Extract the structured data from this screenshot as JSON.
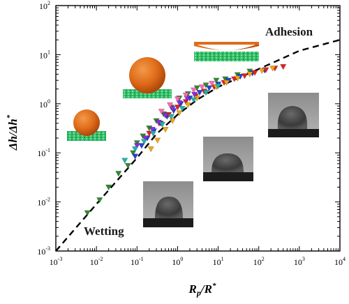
{
  "chart_data": {
    "type": "scatter",
    "title": "",
    "xlabel": {
      "main": "R",
      "sub": "p",
      "div": "/R",
      "sup": "*"
    },
    "ylabel": {
      "main": "Δh/Δh",
      "sup": "*"
    },
    "xscale": "log",
    "yscale": "log",
    "xlim": [
      0.001,
      10000
    ],
    "ylim": [
      0.001,
      100
    ],
    "x_ticks": [
      {
        "base": "10",
        "exp": "-3",
        "value": 0.001
      },
      {
        "base": "10",
        "exp": "-2",
        "value": 0.01
      },
      {
        "base": "10",
        "exp": "-1",
        "value": 0.1
      },
      {
        "base": "10",
        "exp": "0",
        "value": 1
      },
      {
        "base": "10",
        "exp": "1",
        "value": 10
      },
      {
        "base": "10",
        "exp": "2",
        "value": 100
      },
      {
        "base": "10",
        "exp": "3",
        "value": 1000
      },
      {
        "base": "10",
        "exp": "4",
        "value": 10000
      }
    ],
    "y_ticks": [
      {
        "base": "10",
        "exp": "-3",
        "value": 0.001
      },
      {
        "base": "10",
        "exp": "-2",
        "value": 0.01
      },
      {
        "base": "10",
        "exp": "-1",
        "value": 0.1
      },
      {
        "base": "10",
        "exp": "0",
        "value": 1
      },
      {
        "base": "10",
        "exp": "1",
        "value": 10
      },
      {
        "base": "10",
        "exp": "2",
        "value": 100
      }
    ],
    "grid": false,
    "legend": "none",
    "annotations": [
      {
        "text": "Adhesion",
        "position": "top-right"
      },
      {
        "text": "Wetting",
        "position": "bottom-left"
      }
    ],
    "fit_curve": {
      "style": "dashed",
      "color": "#000000",
      "x": [
        0.001,
        0.01,
        0.1,
        0.3,
        1,
        3,
        10,
        100,
        1000,
        10000
      ],
      "y": [
        0.001,
        0.009,
        0.079,
        0.24,
        0.6,
        1.2,
        2.2,
        5.1,
        12.0,
        20.0
      ]
    },
    "series": [
      {
        "color": "#2e8b2e",
        "marker": "triangle-down",
        "points": [
          [
            0.006,
            0.006
          ],
          [
            0.012,
            0.011
          ],
          [
            0.02,
            0.02
          ],
          [
            0.035,
            0.038
          ],
          [
            0.06,
            0.055
          ],
          [
            0.08,
            0.1
          ],
          [
            0.1,
            0.16
          ],
          [
            0.14,
            0.22
          ],
          [
            0.2,
            0.32
          ],
          [
            0.3,
            0.45
          ],
          [
            0.45,
            0.62
          ],
          [
            0.7,
            0.85
          ],
          [
            1.1,
            1.3
          ],
          [
            1.8,
            1.6
          ],
          [
            3,
            2.1
          ],
          [
            5,
            2.4
          ],
          [
            9,
            3.0
          ],
          [
            15,
            3.2
          ],
          [
            30,
            3.9
          ],
          [
            60,
            4.6
          ]
        ]
      },
      {
        "color": "#2a3fd6",
        "marker": "triangle-down",
        "points": [
          [
            0.09,
            0.085
          ],
          [
            0.13,
            0.14
          ],
          [
            0.18,
            0.2
          ],
          [
            0.26,
            0.28
          ],
          [
            0.38,
            0.4
          ],
          [
            0.55,
            0.55
          ],
          [
            0.8,
            0.72
          ],
          [
            1.2,
            1.0
          ],
          [
            2,
            1.3
          ],
          [
            3.5,
            1.7
          ],
          [
            6,
            2.1
          ],
          [
            10,
            2.5
          ],
          [
            18,
            3.0
          ],
          [
            35,
            3.6
          ],
          [
            70,
            4.2
          ],
          [
            140,
            4.8
          ]
        ]
      },
      {
        "color": "#e02020",
        "marker": "triangle-down",
        "points": [
          [
            0.2,
            0.25
          ],
          [
            0.35,
            0.4
          ],
          [
            0.6,
            0.6
          ],
          [
            1.0,
            0.85
          ],
          [
            1.6,
            1.1
          ],
          [
            2.8,
            1.45
          ],
          [
            4.5,
            1.8
          ],
          [
            8,
            2.2
          ],
          [
            14,
            2.7
          ],
          [
            25,
            3.2
          ],
          [
            45,
            3.7
          ],
          [
            80,
            4.3
          ],
          [
            150,
            4.9
          ],
          [
            250,
            5.3
          ],
          [
            400,
            5.7
          ]
        ]
      },
      {
        "color": "#f2a51a",
        "marker": "triangle-down",
        "points": [
          [
            0.22,
            0.12
          ],
          [
            0.32,
            0.18
          ],
          [
            0.5,
            0.3
          ],
          [
            0.75,
            0.45
          ],
          [
            1.1,
            0.65
          ],
          [
            1.8,
            0.95
          ],
          [
            3,
            1.3
          ],
          [
            5,
            1.7
          ],
          [
            9,
            2.2
          ],
          [
            16,
            2.7
          ],
          [
            30,
            3.3
          ],
          [
            60,
            4.0
          ],
          [
            120,
            4.7
          ],
          [
            220,
            5.3
          ]
        ]
      },
      {
        "color": "#8a2be2",
        "marker": "triangle-down",
        "points": [
          [
            0.1,
            0.14
          ],
          [
            0.16,
            0.2
          ],
          [
            0.24,
            0.3
          ],
          [
            0.34,
            0.42
          ],
          [
            0.5,
            0.58
          ],
          [
            0.75,
            0.8
          ],
          [
            1.1,
            1.05
          ],
          [
            1.7,
            1.3
          ],
          [
            2.6,
            1.55
          ]
        ]
      },
      {
        "color": "#20b2aa",
        "marker": "triangle-down",
        "points": [
          [
            0.05,
            0.07
          ],
          [
            0.09,
            0.12
          ],
          [
            0.15,
            0.17
          ],
          [
            0.25,
            0.25
          ],
          [
            0.42,
            0.38
          ],
          [
            0.7,
            0.55
          ],
          [
            1.3,
            0.8
          ],
          [
            2.5,
            1.2
          ],
          [
            5,
            1.7
          ],
          [
            10,
            2.3
          ]
        ]
      },
      {
        "color": "#ff69b4",
        "marker": "triangle-down",
        "points": [
          [
            0.4,
            0.7
          ],
          [
            0.65,
            0.95
          ],
          [
            1.0,
            1.25
          ],
          [
            1.6,
            1.5
          ],
          [
            2.5,
            1.9
          ],
          [
            4,
            2.2
          ],
          [
            7,
            2.6
          ]
        ]
      }
    ]
  }
}
